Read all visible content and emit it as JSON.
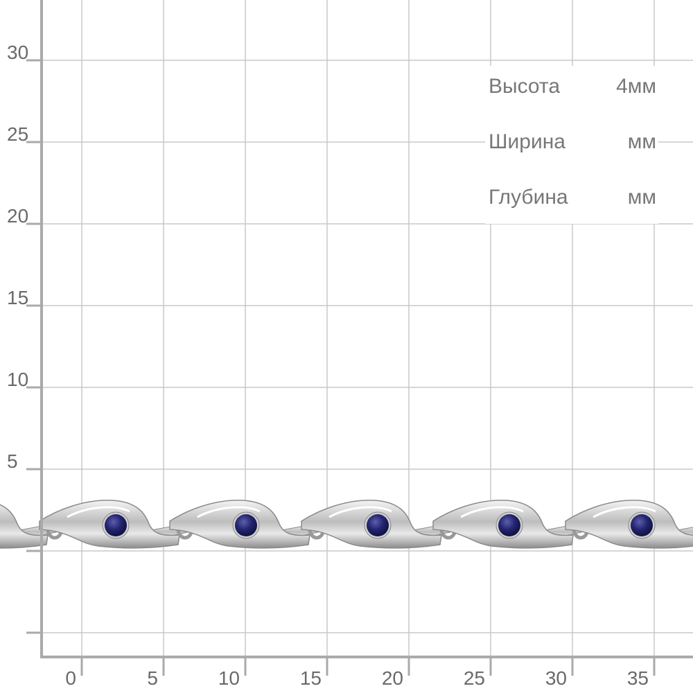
{
  "y_axis": {
    "labels": [
      "30",
      "25",
      "20",
      "15",
      "10",
      "5"
    ]
  },
  "x_axis": {
    "labels": [
      "0",
      "5",
      "10",
      "15",
      "20",
      "25",
      "30",
      "35"
    ]
  },
  "dimensions": [
    {
      "label": "Высота",
      "value": "4мм"
    },
    {
      "label": "Ширина",
      "value": "мм"
    },
    {
      "label": "Глубина",
      "value": "мм"
    }
  ]
}
